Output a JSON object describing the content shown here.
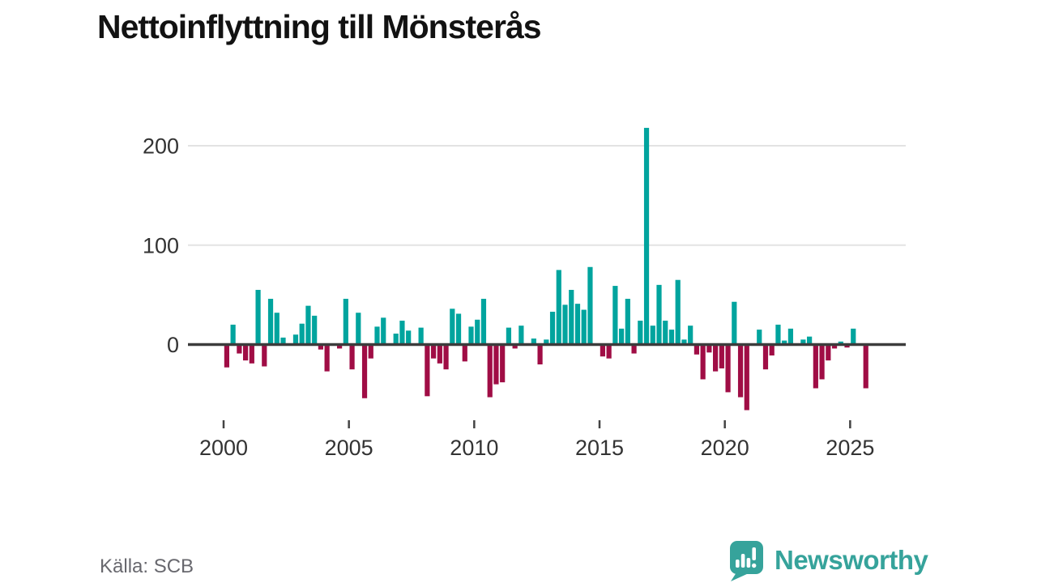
{
  "title": "Nettoinflyttning till Mönsterås",
  "source": "Källa: SCB",
  "logo": {
    "text": "Newsworthy"
  },
  "colors": {
    "background": "#ffffff",
    "title_text": "#121212",
    "axis_text": "#333333",
    "source_text": "#68686e",
    "grid": "#e3e3e3",
    "zero_line": "#3c3c3c",
    "tick": "#444444",
    "logo_teal": "#36a39b",
    "positive_bar": "#00a49e",
    "negative_bar": "#a00d45"
  },
  "chart_data": {
    "type": "bar",
    "title": "Nettoinflyttning till Mönsterås",
    "xlabel": "",
    "ylabel": "",
    "x_unit": "quarter",
    "grid": "horizontal",
    "legend": "none",
    "ylim": [
      -80,
      230
    ],
    "y_ticks": [
      0,
      100,
      200
    ],
    "x_tick_labels": [
      "2000",
      "2005",
      "2010",
      "2015",
      "2020",
      "2025"
    ],
    "positive_color": "#00a49e",
    "negative_color": "#a00d45",
    "categories": [
      "2000 Q1",
      "2000 Q2",
      "2000 Q3",
      "2000 Q4",
      "2001 Q1",
      "2001 Q2",
      "2001 Q3",
      "2001 Q4",
      "2002 Q1",
      "2002 Q2",
      "2002 Q3",
      "2002 Q4",
      "2003 Q1",
      "2003 Q2",
      "2003 Q3",
      "2003 Q4",
      "2004 Q1",
      "2004 Q2",
      "2004 Q3",
      "2004 Q4",
      "2005 Q1",
      "2005 Q2",
      "2005 Q3",
      "2005 Q4",
      "2006 Q1",
      "2006 Q2",
      "2006 Q3",
      "2006 Q4",
      "2007 Q1",
      "2007 Q2",
      "2007 Q3",
      "2007 Q4",
      "2008 Q1",
      "2008 Q2",
      "2008 Q3",
      "2008 Q4",
      "2009 Q1",
      "2009 Q2",
      "2009 Q3",
      "2009 Q4",
      "2010 Q1",
      "2010 Q2",
      "2010 Q3",
      "2010 Q4",
      "2011 Q1",
      "2011 Q2",
      "2011 Q3",
      "2011 Q4",
      "2012 Q1",
      "2012 Q2",
      "2012 Q3",
      "2012 Q4",
      "2013 Q1",
      "2013 Q2",
      "2013 Q3",
      "2013 Q4",
      "2014 Q1",
      "2014 Q2",
      "2014 Q3",
      "2014 Q4",
      "2015 Q1",
      "2015 Q2",
      "2015 Q3",
      "2015 Q4",
      "2016 Q1",
      "2016 Q2",
      "2016 Q3",
      "2016 Q4",
      "2017 Q1",
      "2017 Q2",
      "2017 Q3",
      "2017 Q4",
      "2018 Q1",
      "2018 Q2",
      "2018 Q3",
      "2018 Q4",
      "2019 Q1",
      "2019 Q2",
      "2019 Q3",
      "2019 Q4",
      "2020 Q1",
      "2020 Q2",
      "2020 Q3",
      "2020 Q4",
      "2021 Q1",
      "2021 Q2",
      "2021 Q3",
      "2021 Q4",
      "2022 Q1",
      "2022 Q2",
      "2022 Q3",
      "2022 Q4",
      "2023 Q1",
      "2023 Q2",
      "2023 Q3",
      "2023 Q4",
      "2024 Q1",
      "2024 Q2",
      "2024 Q3",
      "2024 Q4",
      "2025 Q1",
      "2025 Q2",
      "2025 Q3"
    ],
    "values": [
      -23,
      20,
      -9,
      -16,
      -19,
      55,
      -22,
      46,
      32,
      7,
      0,
      10,
      21,
      39,
      29,
      -5,
      -27,
      0,
      -4,
      46,
      -25,
      32,
      -54,
      -14,
      18,
      27,
      0,
      11,
      24,
      14,
      0,
      17,
      -52,
      -14,
      -19,
      -25,
      36,
      31,
      -17,
      18,
      25,
      46,
      -53,
      -40,
      -38,
      17,
      -4,
      19,
      0,
      6,
      -20,
      5,
      33,
      75,
      40,
      55,
      41,
      35,
      78,
      0,
      -12,
      -14,
      59,
      16,
      46,
      -9,
      24,
      218,
      19,
      60,
      24,
      15,
      65,
      5,
      19,
      -10,
      -35,
      -8,
      -27,
      -24,
      -48,
      43,
      -53,
      -66,
      0,
      15,
      -25,
      -11,
      20,
      4,
      16,
      0,
      5,
      8,
      -44,
      -35,
      -16,
      -4,
      3,
      -3,
      16,
      0,
      -44
    ]
  }
}
